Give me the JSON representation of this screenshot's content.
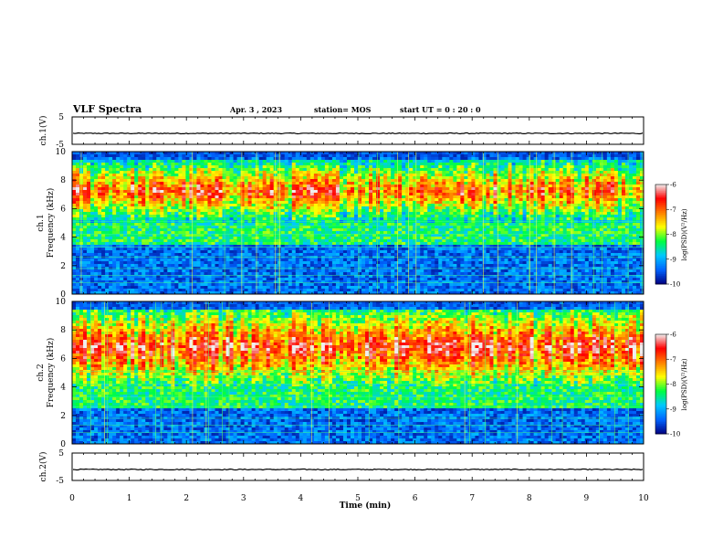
{
  "header": {
    "title": "VLF Spectra",
    "date": "Apr. 3  , 2023",
    "station": "station= MOS",
    "start": "start  UT =   0  : 20 : 0"
  },
  "colors": {
    "low": "#000080",
    "mid_low": "#0064ff",
    "mid": "#00c8ff",
    "green": "#00ff40",
    "yellow": "#ffff00",
    "orange": "#ff8000",
    "high": "#ff0000",
    "peak": "#f0f0f0"
  },
  "chart_data": [
    {
      "type": "line",
      "ylabel": "ch.1(V)",
      "ylim": [
        -5,
        5
      ],
      "yticks": [
        "5",
        "-5"
      ],
      "level": -1
    },
    {
      "type": "heatmap",
      "ylabel": "ch.1",
      "ylabel2": "Frequency  (kHz)",
      "ylim": [
        0,
        10
      ],
      "yticks": [
        "0",
        "2",
        "4",
        "6",
        "8",
        "10"
      ],
      "colorbar": {
        "label": "log(PSD)(V²/Hz)",
        "range": [
          -10,
          -6
        ],
        "ticks": [
          "-6",
          "-7",
          "-8",
          "-9",
          "-10"
        ]
      },
      "band_khz": [
        5.0,
        9.5
      ]
    },
    {
      "type": "heatmap",
      "ylabel": "ch.2",
      "ylabel2": "Frequency  (kHz)",
      "ylim": [
        0,
        10
      ],
      "yticks": [
        "0",
        "2",
        "4",
        "6",
        "8",
        "10"
      ],
      "colorbar": {
        "label": "log(PSD)(V²/Hz)",
        "range": [
          -10,
          -6
        ],
        "ticks": [
          "-6",
          "-7",
          "-8",
          "-9",
          "-10"
        ]
      },
      "band_khz": [
        4.0,
        9.5
      ]
    },
    {
      "type": "line",
      "ylabel": "ch.2(V)",
      "ylim": [
        -5,
        5
      ],
      "yticks": [
        "5",
        "-5"
      ],
      "level": -1
    }
  ],
  "xaxis": {
    "label": "Time  (min)",
    "xlim": [
      0,
      10
    ],
    "ticks": [
      "0",
      "1",
      "2",
      "3",
      "4",
      "5",
      "6",
      "7",
      "8",
      "9",
      "10"
    ]
  }
}
